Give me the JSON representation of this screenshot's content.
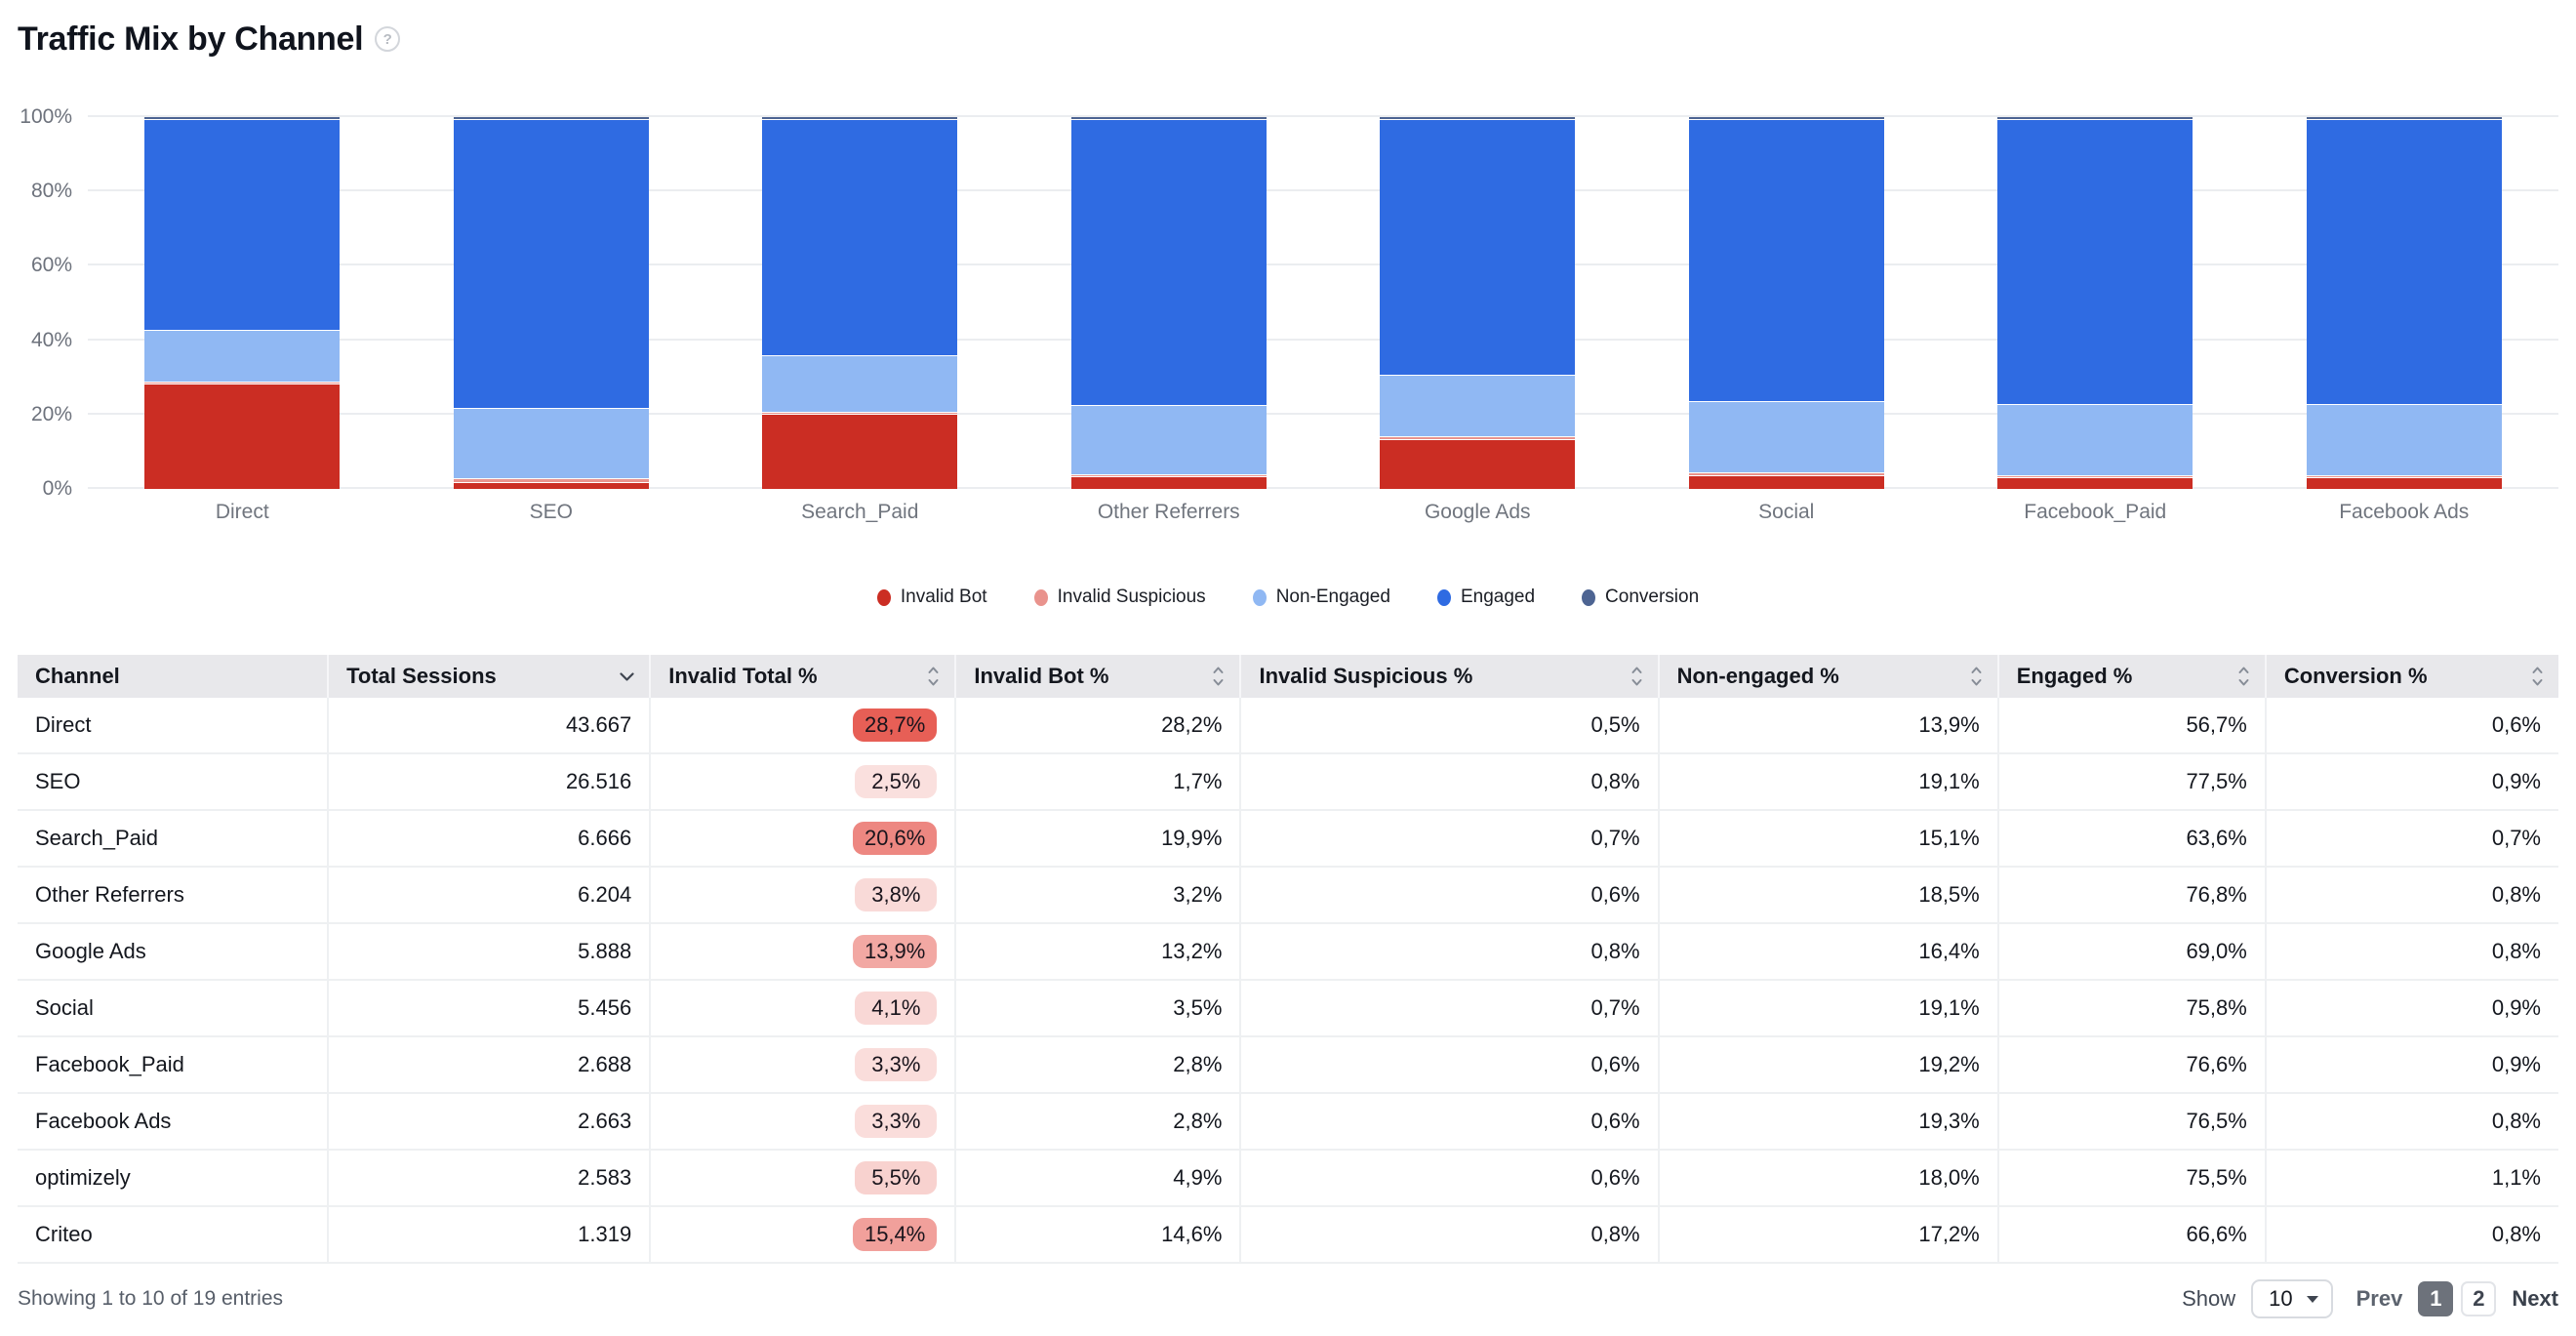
{
  "title": "Traffic Mix by Channel",
  "help_icon": "?",
  "chart_data": {
    "type": "bar",
    "stacked": true,
    "categories": [
      "Direct",
      "SEO",
      "Search_Paid",
      "Other Referrers",
      "Google Ads",
      "Social",
      "Facebook_Paid",
      "Facebook Ads"
    ],
    "series": [
      {
        "name": "Invalid Bot",
        "color": "#cb2d23",
        "values": [
          28.2,
          1.7,
          19.9,
          3.2,
          13.2,
          3.5,
          2.8,
          2.8
        ]
      },
      {
        "name": "Invalid Suspicious",
        "color": "#e9938d",
        "values": [
          0.5,
          0.8,
          0.7,
          0.6,
          0.8,
          0.7,
          0.6,
          0.6
        ]
      },
      {
        "name": "Non-Engaged",
        "color": "#90b8f3",
        "values": [
          13.9,
          19.1,
          15.1,
          18.5,
          16.4,
          19.1,
          19.2,
          19.3
        ]
      },
      {
        "name": "Engaged",
        "color": "#2f6be2",
        "values": [
          56.7,
          77.5,
          63.6,
          76.8,
          69.0,
          75.8,
          76.6,
          76.5
        ]
      },
      {
        "name": "Conversion",
        "color": "#4d6492",
        "values": [
          0.6,
          0.9,
          0.7,
          0.8,
          0.8,
          0.9,
          0.9,
          0.8
        ]
      }
    ],
    "title": "Traffic Mix by Channel",
    "xlabel": "",
    "ylabel": "",
    "ylim": [
      0,
      100
    ],
    "y_ticks": [
      "0%",
      "20%",
      "40%",
      "60%",
      "80%",
      "100%"
    ],
    "grid": true,
    "legend_position": "bottom"
  },
  "table": {
    "columns": [
      {
        "label": "Channel",
        "sort": "none"
      },
      {
        "label": "Total Sessions",
        "sort": "desc"
      },
      {
        "label": "Invalid Total %",
        "sort": "both"
      },
      {
        "label": "Invalid Bot %",
        "sort": "both"
      },
      {
        "label": "Invalid Suspicious %",
        "sort": "both"
      },
      {
        "label": "Non-engaged %",
        "sort": "both"
      },
      {
        "label": "Engaged %",
        "sort": "both"
      },
      {
        "label": "Conversion %",
        "sort": "both"
      }
    ],
    "rows": [
      {
        "channel": "Direct",
        "total_sessions": "43.667",
        "invalid_total": "28,7%",
        "invalid_bot": "28,2%",
        "invalid_suspicious": "0,5%",
        "non_engaged": "13,9%",
        "engaged": "56,7%",
        "conversion": "0,6%"
      },
      {
        "channel": "SEO",
        "total_sessions": "26.516",
        "invalid_total": "2,5%",
        "invalid_bot": "1,7%",
        "invalid_suspicious": "0,8%",
        "non_engaged": "19,1%",
        "engaged": "77,5%",
        "conversion": "0,9%"
      },
      {
        "channel": "Search_Paid",
        "total_sessions": "6.666",
        "invalid_total": "20,6%",
        "invalid_bot": "19,9%",
        "invalid_suspicious": "0,7%",
        "non_engaged": "15,1%",
        "engaged": "63,6%",
        "conversion": "0,7%"
      },
      {
        "channel": "Other Referrers",
        "total_sessions": "6.204",
        "invalid_total": "3,8%",
        "invalid_bot": "3,2%",
        "invalid_suspicious": "0,6%",
        "non_engaged": "18,5%",
        "engaged": "76,8%",
        "conversion": "0,8%"
      },
      {
        "channel": "Google Ads",
        "total_sessions": "5.888",
        "invalid_total": "13,9%",
        "invalid_bot": "13,2%",
        "invalid_suspicious": "0,8%",
        "non_engaged": "16,4%",
        "engaged": "69,0%",
        "conversion": "0,8%"
      },
      {
        "channel": "Social",
        "total_sessions": "5.456",
        "invalid_total": "4,1%",
        "invalid_bot": "3,5%",
        "invalid_suspicious": "0,7%",
        "non_engaged": "19,1%",
        "engaged": "75,8%",
        "conversion": "0,9%"
      },
      {
        "channel": "Facebook_Paid",
        "total_sessions": "2.688",
        "invalid_total": "3,3%",
        "invalid_bot": "2,8%",
        "invalid_suspicious": "0,6%",
        "non_engaged": "19,2%",
        "engaged": "76,6%",
        "conversion": "0,9%"
      },
      {
        "channel": "Facebook Ads",
        "total_sessions": "2.663",
        "invalid_total": "3,3%",
        "invalid_bot": "2,8%",
        "invalid_suspicious": "0,6%",
        "non_engaged": "19,3%",
        "engaged": "76,5%",
        "conversion": "0,8%"
      },
      {
        "channel": "optimizely",
        "total_sessions": "2.583",
        "invalid_total": "5,5%",
        "invalid_bot": "4,9%",
        "invalid_suspicious": "0,6%",
        "non_engaged": "18,0%",
        "engaged": "75,5%",
        "conversion": "1,1%"
      },
      {
        "channel": "Criteo",
        "total_sessions": "1.319",
        "invalid_total": "15,4%",
        "invalid_bot": "14,6%",
        "invalid_suspicious": "0,8%",
        "non_engaged": "17,2%",
        "engaged": "66,6%",
        "conversion": "0,8%"
      }
    ]
  },
  "footer": {
    "showing_text": "Showing 1 to 10 of 19 entries",
    "show_label": "Show",
    "page_size": "10",
    "prev_label": "Prev",
    "pages": [
      "1",
      "2"
    ],
    "active_page": "1",
    "next_label": "Next"
  }
}
